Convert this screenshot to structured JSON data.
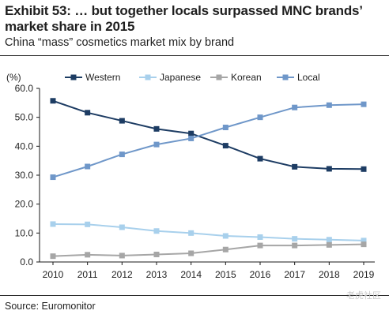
{
  "header": {
    "title": "Exhibit 53: … but together locals surpassed MNC brands’ market share in 2015",
    "subtitle": "China “mass” cosmetics market mix by brand"
  },
  "footer": {
    "source": "Source: Euromonitor",
    "watermark": "老虎社区"
  },
  "chart_data": {
    "type": "line",
    "ylabel": "(%)",
    "ylim": [
      0,
      60
    ],
    "yticks": [
      "0.0",
      "10.0",
      "20.0",
      "30.0",
      "40.0",
      "50.0",
      "60.0"
    ],
    "x": [
      "2010",
      "2011",
      "2012",
      "2013",
      "2014",
      "2015",
      "2016",
      "2017",
      "2018",
      "2019"
    ],
    "grid": false,
    "legend": "top",
    "series": [
      {
        "name": "Western",
        "color": "#1d3c63",
        "marker": "square",
        "values": [
          55.7,
          51.6,
          48.8,
          46.0,
          44.4,
          40.2,
          35.7,
          32.9,
          32.2,
          32.1
        ]
      },
      {
        "name": "Japanese",
        "color": "#a8d0ec",
        "marker": "square",
        "values": [
          13.1,
          13.0,
          12.0,
          10.7,
          10.0,
          9.0,
          8.6,
          8.0,
          7.7,
          7.4
        ]
      },
      {
        "name": "Korean",
        "color": "#a6a6a6",
        "marker": "square",
        "values": [
          2.0,
          2.5,
          2.2,
          2.6,
          3.0,
          4.3,
          5.7,
          5.7,
          5.9,
          6.1
        ]
      },
      {
        "name": "Local",
        "color": "#6f97c9",
        "marker": "square",
        "values": [
          29.3,
          33.0,
          37.2,
          40.6,
          42.7,
          46.5,
          50.0,
          53.4,
          54.2,
          54.5
        ]
      }
    ]
  }
}
